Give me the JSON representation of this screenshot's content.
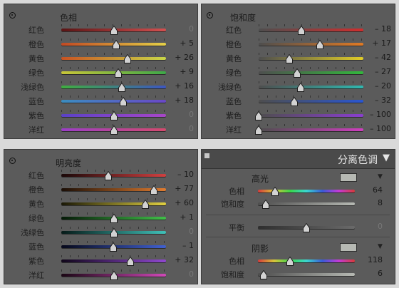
{
  "panels": {
    "hue": {
      "title": "色相",
      "rows": [
        {
          "label": "红色",
          "value": "0",
          "grad": "#5a1515,#d45050"
        },
        {
          "label": "橙色",
          "value": "+ 5",
          "grad": "#c24a23,#e4d048"
        },
        {
          "label": "黄色",
          "value": "+ 26",
          "grad": "#c85322,#c8d648"
        },
        {
          "label": "绿色",
          "value": "+ 9",
          "grad": "#c8c638,#3da848"
        },
        {
          "label": "浅绿色",
          "value": "+ 16",
          "grad": "#3fae40,#3d56c0"
        },
        {
          "label": "蓝色",
          "value": "+ 18",
          "grad": "#3b8dc0,#6a48c6"
        },
        {
          "label": "紫色",
          "value": "0",
          "grad": "#5a42c8,#a846c8"
        },
        {
          "label": "洋红",
          "value": "0",
          "grad": "#9b3ec8,#d44a6e"
        }
      ]
    },
    "saturation": {
      "title": "饱和度",
      "rows": [
        {
          "label": "红色",
          "value": "– 18",
          "grad": "#4e4e4e,#d02e2e"
        },
        {
          "label": "橙色",
          "value": "+ 17",
          "grad": "#4e4e4e,#e07a24"
        },
        {
          "label": "黄色",
          "value": "– 42",
          "grad": "#4e4e4e,#e0cd28"
        },
        {
          "label": "绿色",
          "value": "– 27",
          "grad": "#4e4e4e,#32b83c"
        },
        {
          "label": "浅绿色",
          "value": "– 20",
          "grad": "#4e4e4e,#2fb8b0"
        },
        {
          "label": "蓝色",
          "value": "– 32",
          "grad": "#4e4e4e,#2a56d0"
        },
        {
          "label": "紫色",
          "value": "– 100",
          "grad": "#4e4e4e,#8a3ed0"
        },
        {
          "label": "洋红",
          "value": "– 100",
          "grad": "#4e4e4e,#d03ec0"
        }
      ]
    },
    "luminance": {
      "title": "明亮度",
      "rows": [
        {
          "label": "红色",
          "value": "– 10",
          "grad": "#1a0808,#d04040"
        },
        {
          "label": "橙色",
          "value": "+ 77",
          "grad": "#1a0e06,#e07c30"
        },
        {
          "label": "黄色",
          "value": "+ 60",
          "grad": "#1a1806,#e0d040"
        },
        {
          "label": "绿色",
          "value": "+ 1",
          "grad": "#061a08,#40c048"
        },
        {
          "label": "浅绿色",
          "value": "0",
          "grad": "#061a18,#40c0b8"
        },
        {
          "label": "蓝色",
          "value": "– 1",
          "grad": "#06081a,#4060d0"
        },
        {
          "label": "紫色",
          "value": "+ 32",
          "grad": "#10061a,#9048d0"
        },
        {
          "label": "洋红",
          "value": "0",
          "grad": "#1a0614,#d048b8"
        }
      ]
    },
    "split_toning": {
      "title": "分离色调",
      "highlights": {
        "title": "高光",
        "hue_label": "色相",
        "hue_value": "64",
        "sat_label": "饱和度",
        "sat_value": "8"
      },
      "balance": {
        "label": "平衡",
        "value": "0"
      },
      "shadows": {
        "title": "阴影",
        "hue_label": "色相",
        "hue_value": "118",
        "sat_label": "饱和度",
        "sat_value": "6"
      }
    }
  },
  "colors": {
    "panel_bg": "#5b5b5b",
    "rainbow": "#d63a3a,#d6c43a,#3ad64a,#3ad6d0,#3a5ad6,#c43ad6,#d63a3a",
    "sat_grad": "#4e4e4e,#b6b9b3",
    "balance_grad": "#2e2e2e,#6a6a6a"
  },
  "icons": {
    "panel_target": "target-adjustment-icon",
    "collapse": "triangle-down-icon",
    "menu": "square-icon"
  }
}
